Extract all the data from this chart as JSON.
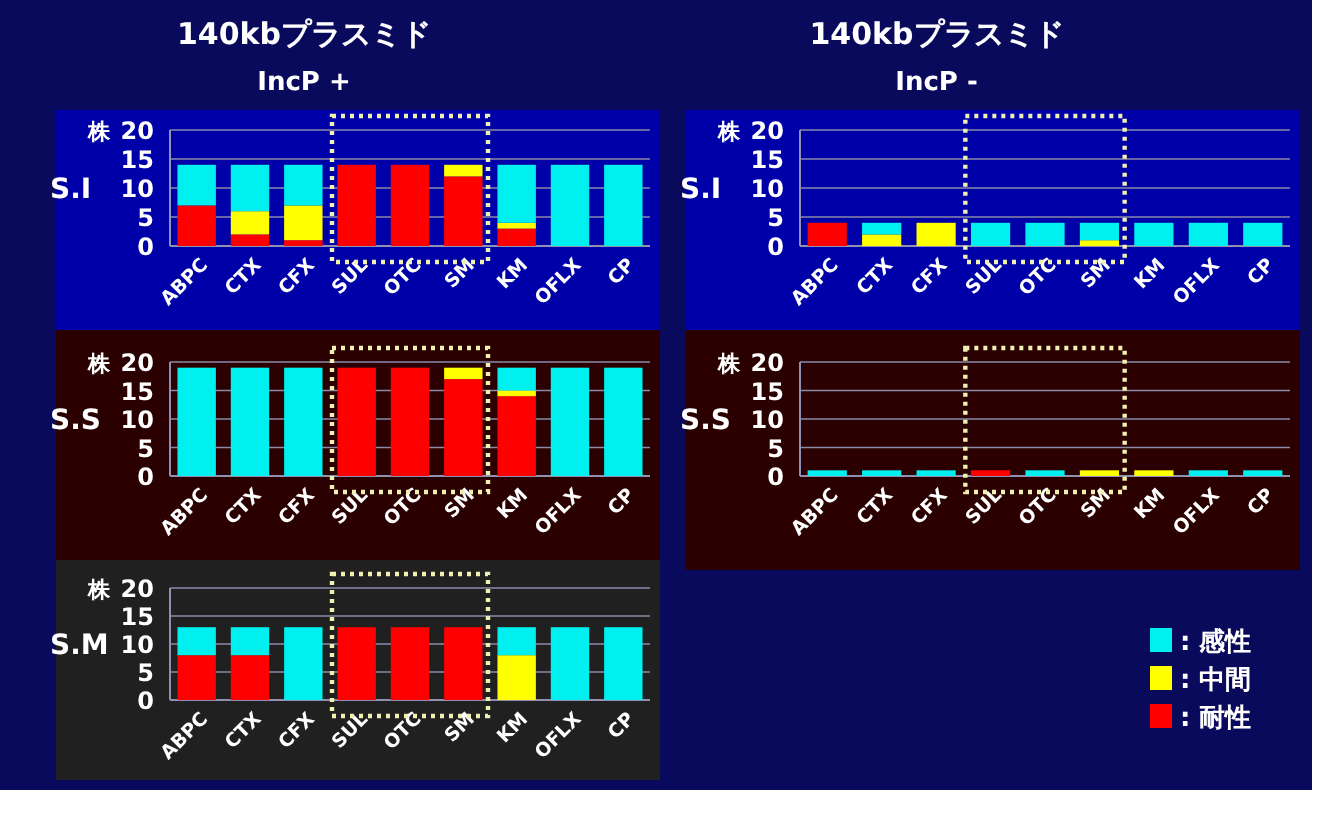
{
  "chart_data": [
    {
      "type": "bar",
      "stacked": true,
      "title": "140kbプラスミド",
      "subtitle": "IncP +",
      "ylabel": "S.I",
      "annotations": [
        "株"
      ],
      "categories": [
        "ABPC",
        "CTX",
        "CFX",
        "SUL",
        "OTC",
        "SM",
        "KM",
        "OFLX",
        "CP"
      ],
      "ylim": [
        0,
        20
      ],
      "yticks": [
        0,
        5,
        10,
        15,
        20
      ],
      "grid": "y",
      "series": [
        {
          "color": "#ff0000",
          "values": [
            7,
            2,
            1,
            14,
            14,
            12,
            3,
            0,
            0
          ]
        },
        {
          "color": "#ffff00",
          "values": [
            0,
            4,
            6,
            0,
            0,
            2,
            1,
            0,
            0
          ]
        },
        {
          "color": "#00f0f0",
          "values": [
            7,
            8,
            7,
            0,
            0,
            0,
            10,
            14,
            14
          ]
        }
      ]
    },
    {
      "type": "bar",
      "stacked": true,
      "ylabel": "S.S",
      "annotations": [
        "株"
      ],
      "categories": [
        "ABPC",
        "CTX",
        "CFX",
        "SUL",
        "OTC",
        "SM",
        "KM",
        "OFLX",
        "CP"
      ],
      "ylim": [
        0,
        20
      ],
      "yticks": [
        0,
        5,
        10,
        15,
        20
      ],
      "grid": "y",
      "series": [
        {
          "color": "#ff0000",
          "values": [
            0,
            0,
            0,
            19,
            19,
            17,
            14,
            0,
            0
          ]
        },
        {
          "color": "#ffff00",
          "values": [
            0,
            0,
            0,
            0,
            0,
            2,
            1,
            0,
            0
          ]
        },
        {
          "color": "#00f0f0",
          "values": [
            19,
            19,
            19,
            0,
            0,
            0,
            4,
            19,
            19
          ]
        }
      ]
    },
    {
      "type": "bar",
      "stacked": true,
      "ylabel": "S.M",
      "annotations": [
        "株"
      ],
      "categories": [
        "ABPC",
        "CTX",
        "CFX",
        "SUL",
        "OTC",
        "SM",
        "KM",
        "OFLX",
        "CP"
      ],
      "ylim": [
        0,
        20
      ],
      "yticks": [
        0,
        5,
        10,
        15,
        20
      ],
      "grid": "y",
      "series": [
        {
          "color": "#ff0000",
          "values": [
            8,
            8,
            0,
            13,
            13,
            13,
            0,
            0,
            0
          ]
        },
        {
          "color": "#ffff00",
          "values": [
            0,
            0,
            0,
            0,
            0,
            0,
            8,
            0,
            0
          ]
        },
        {
          "color": "#00f0f0",
          "values": [
            5,
            5,
            13,
            0,
            0,
            0,
            5,
            13,
            13
          ]
        }
      ]
    },
    {
      "type": "bar",
      "stacked": true,
      "title": "140kbプラスミド",
      "subtitle": "IncP -",
      "ylabel": "S.I",
      "annotations": [
        "株"
      ],
      "categories": [
        "ABPC",
        "CTX",
        "CFX",
        "SUL",
        "OTC",
        "SM",
        "KM",
        "OFLX",
        "CP"
      ],
      "ylim": [
        0,
        20
      ],
      "yticks": [
        0,
        5,
        10,
        15,
        20
      ],
      "grid": "y",
      "series": [
        {
          "color": "#ff0000",
          "values": [
            4,
            0,
            0,
            0,
            0,
            0,
            0,
            0,
            0
          ]
        },
        {
          "color": "#ffff00",
          "values": [
            0,
            2,
            4,
            0,
            0,
            1,
            0,
            0,
            0
          ]
        },
        {
          "color": "#00f0f0",
          "values": [
            0,
            2,
            0,
            4,
            4,
            3,
            4,
            4,
            4
          ]
        }
      ]
    },
    {
      "type": "bar",
      "stacked": true,
      "ylabel": "S.S",
      "annotations": [
        "株"
      ],
      "categories": [
        "ABPC",
        "CTX",
        "CFX",
        "SUL",
        "OTC",
        "SM",
        "KM",
        "OFLX",
        "CP"
      ],
      "ylim": [
        0,
        20
      ],
      "yticks": [
        0,
        5,
        10,
        15,
        20
      ],
      "grid": "y",
      "legend": "bottom right",
      "series": [
        {
          "name": ": 耐性",
          "color": "#ff0000",
          "values": [
            0,
            0,
            0,
            1,
            0,
            0,
            0,
            0,
            0
          ]
        },
        {
          "name": ": 中間",
          "color": "#ffff00",
          "values": [
            0,
            0,
            0,
            0,
            0,
            1,
            1,
            0,
            0
          ]
        },
        {
          "name": ": 感性",
          "color": "#00f0f0",
          "values": [
            1,
            1,
            1,
            0,
            1,
            0,
            0,
            1,
            1
          ]
        }
      ]
    }
  ]
}
